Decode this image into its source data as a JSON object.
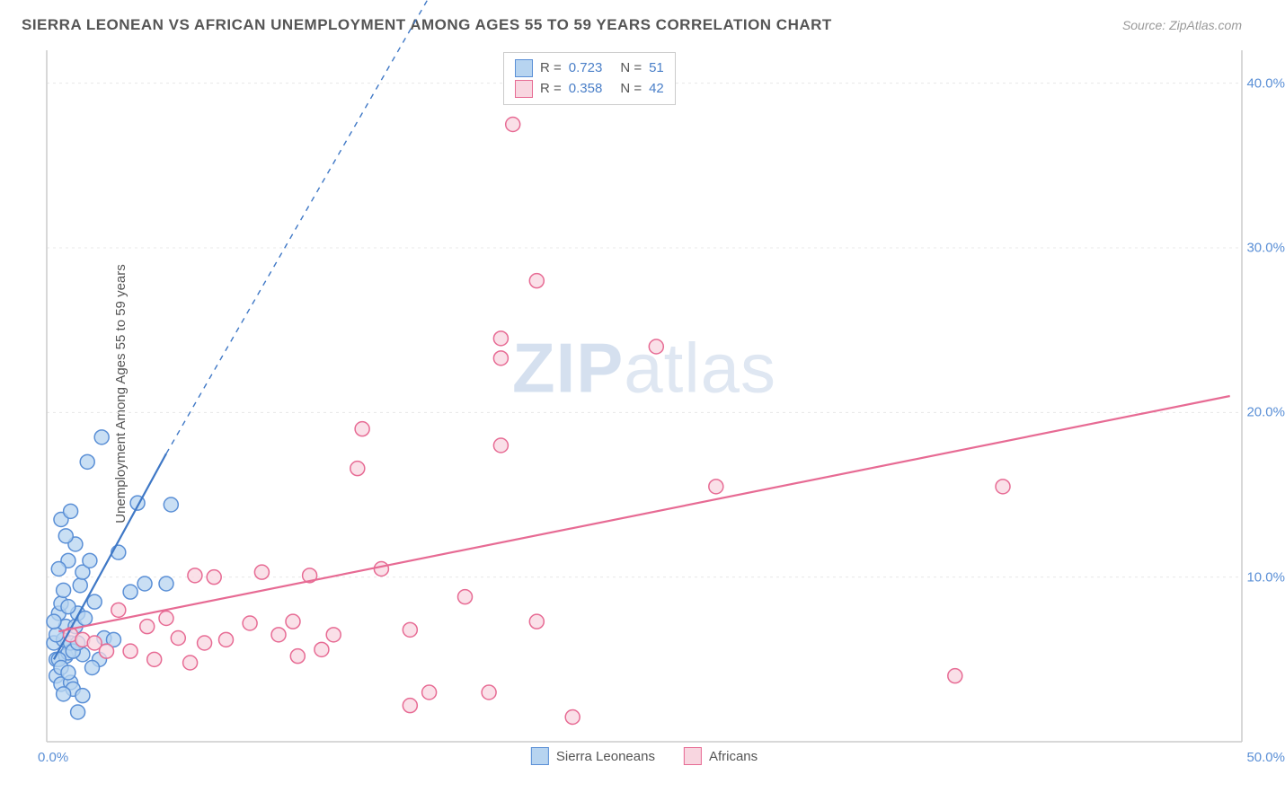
{
  "title": "SIERRA LEONEAN VS AFRICAN UNEMPLOYMENT AMONG AGES 55 TO 59 YEARS CORRELATION CHART",
  "source": "Source: ZipAtlas.com",
  "ylabel": "Unemployment Among Ages 55 to 59 years",
  "watermark": {
    "bold": "ZIP",
    "rest": "atlas"
  },
  "chart": {
    "type": "scatter",
    "xlim": [
      0,
      50
    ],
    "ylim": [
      0,
      42
    ],
    "x_origin_label": "0.0%",
    "x_max_label": "50.0%",
    "yticks": [
      {
        "v": 10,
        "label": "10.0%"
      },
      {
        "v": 20,
        "label": "20.0%"
      },
      {
        "v": 30,
        "label": "30.0%"
      },
      {
        "v": 40,
        "label": "40.0%"
      }
    ],
    "grid_color": "#e8e8e8",
    "grid_dash": "3,4",
    "axis_color": "#cccccc",
    "marker_radius": 8,
    "marker_stroke_width": 1.5,
    "series": [
      {
        "name": "Sierra Leoneans",
        "fill": "#b7d4f0",
        "stroke": "#5a8fd6",
        "points": [
          [
            0.3,
            6.0
          ],
          [
            0.4,
            5.0
          ],
          [
            0.4,
            4.0
          ],
          [
            0.6,
            3.5
          ],
          [
            0.7,
            6.2
          ],
          [
            0.8,
            7.0
          ],
          [
            0.8,
            5.2
          ],
          [
            0.5,
            7.8
          ],
          [
            0.6,
            8.4
          ],
          [
            0.7,
            9.2
          ],
          [
            0.9,
            5.4
          ],
          [
            1.0,
            3.6
          ],
          [
            1.1,
            3.2
          ],
          [
            1.3,
            1.8
          ],
          [
            1.0,
            6.0
          ],
          [
            1.2,
            7.0
          ],
          [
            1.3,
            7.8
          ],
          [
            1.4,
            9.5
          ],
          [
            1.5,
            10.3
          ],
          [
            1.2,
            12.0
          ],
          [
            0.9,
            11.0
          ],
          [
            0.5,
            10.5
          ],
          [
            0.8,
            12.5
          ],
          [
            0.6,
            13.5
          ],
          [
            1.0,
            14.0
          ],
          [
            2.3,
            18.5
          ],
          [
            1.7,
            17.0
          ],
          [
            2.0,
            8.5
          ],
          [
            2.4,
            6.3
          ],
          [
            2.8,
            6.2
          ],
          [
            2.2,
            5.0
          ],
          [
            1.5,
            5.3
          ],
          [
            1.9,
            4.5
          ],
          [
            1.6,
            7.5
          ],
          [
            1.8,
            11.0
          ],
          [
            0.5,
            5.0
          ],
          [
            0.4,
            6.5
          ],
          [
            0.3,
            7.3
          ],
          [
            0.6,
            4.5
          ],
          [
            0.9,
            4.2
          ],
          [
            1.1,
            5.5
          ],
          [
            3.5,
            9.1
          ],
          [
            3.0,
            11.5
          ],
          [
            3.8,
            14.5
          ],
          [
            4.1,
            9.6
          ],
          [
            5.2,
            14.4
          ],
          [
            5.0,
            9.6
          ],
          [
            1.5,
            2.8
          ],
          [
            0.7,
            2.9
          ],
          [
            0.9,
            8.2
          ],
          [
            1.3,
            6.0
          ]
        ],
        "trend": {
          "solid_from": [
            0.3,
            5.0
          ],
          "solid_to": [
            5.0,
            17.5
          ],
          "dashed_to": [
            16.5,
            46.5
          ],
          "color": "#3f78c6",
          "width": 2.2
        }
      },
      {
        "name": "Africans",
        "fill": "#f8d6e0",
        "stroke": "#e76b94",
        "points": [
          [
            1.0,
            6.5
          ],
          [
            1.5,
            6.2
          ],
          [
            2.0,
            6.0
          ],
          [
            3.0,
            8.0
          ],
          [
            3.5,
            5.5
          ],
          [
            4.2,
            7.0
          ],
          [
            5.0,
            7.5
          ],
          [
            5.5,
            6.3
          ],
          [
            6.2,
            10.1
          ],
          [
            6.6,
            6.0
          ],
          [
            7.0,
            10.0
          ],
          [
            7.5,
            6.2
          ],
          [
            8.5,
            7.2
          ],
          [
            9.0,
            10.3
          ],
          [
            9.7,
            6.5
          ],
          [
            10.5,
            5.2
          ],
          [
            10.3,
            7.3
          ],
          [
            11.0,
            10.1
          ],
          [
            11.5,
            5.6
          ],
          [
            13.0,
            16.6
          ],
          [
            13.2,
            19.0
          ],
          [
            14.0,
            10.5
          ],
          [
            15.2,
            6.8
          ],
          [
            15.2,
            2.2
          ],
          [
            16.0,
            3.0
          ],
          [
            17.5,
            8.8
          ],
          [
            18.5,
            3.0
          ],
          [
            19.0,
            24.5
          ],
          [
            19.0,
            18.0
          ],
          [
            19.0,
            23.3
          ],
          [
            19.5,
            37.5
          ],
          [
            20.5,
            7.3
          ],
          [
            20.5,
            28.0
          ],
          [
            22.0,
            1.5
          ],
          [
            25.5,
            24.0
          ],
          [
            28.0,
            15.5
          ],
          [
            38.0,
            4.0
          ],
          [
            40.0,
            15.5
          ],
          [
            4.5,
            5.0
          ],
          [
            2.5,
            5.5
          ],
          [
            12.0,
            6.5
          ],
          [
            6.0,
            4.8
          ]
        ],
        "trend": {
          "solid_from": [
            0.5,
            6.7
          ],
          "solid_to": [
            49.5,
            21.0
          ],
          "color": "#e76b94",
          "width": 2.2
        }
      }
    ],
    "legend_top": [
      {
        "swatch_fill": "#b7d4f0",
        "swatch_stroke": "#5a8fd6",
        "r": "0.723",
        "n": "51"
      },
      {
        "swatch_fill": "#f8d6e0",
        "swatch_stroke": "#e76b94",
        "r": "0.358",
        "n": "42"
      }
    ],
    "legend_bottom": [
      {
        "swatch_fill": "#b7d4f0",
        "swatch_stroke": "#5a8fd6",
        "label": "Sierra Leoneans"
      },
      {
        "swatch_fill": "#f8d6e0",
        "swatch_stroke": "#e76b94",
        "label": "Africans"
      }
    ]
  }
}
